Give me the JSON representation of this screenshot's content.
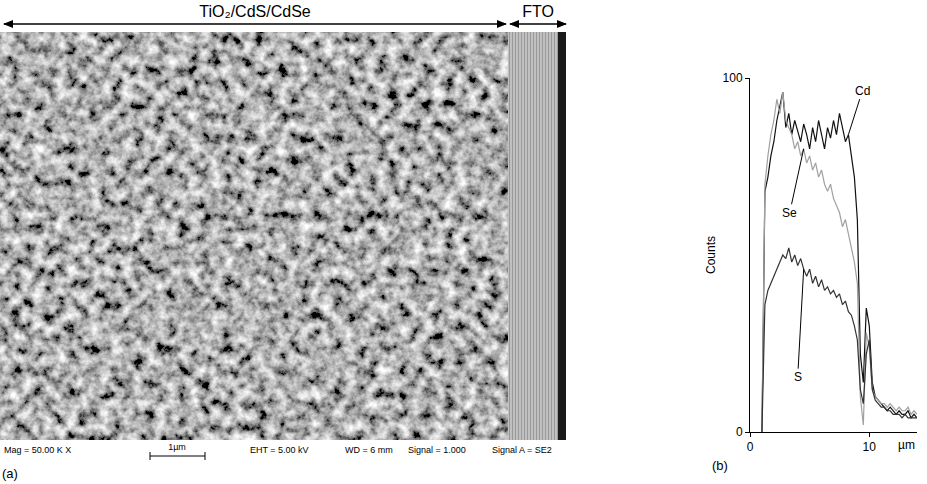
{
  "image_panel": {
    "panel_label": "(a)",
    "regions": [
      {
        "label": "TiO₂/CdS/CdSe"
      },
      {
        "label": "FTO"
      }
    ],
    "info_bar": {
      "magnification": "Mag = 50.00 K X",
      "scale_bar": "1µm",
      "eht": "EHT = 5.00 kV",
      "wd": "WD = 6 mm",
      "signal": "Signal = 1.000",
      "signal_a": "Signal A = SE2"
    }
  },
  "chart_data": {
    "type": "line",
    "panel_label": "(b)",
    "x_label": "µm",
    "y_label": "Counts",
    "x": [
      1,
      1.25,
      1.5,
      1.75,
      2,
      2.25,
      2.5,
      2.75,
      3,
      3.25,
      3.5,
      3.75,
      4,
      4.25,
      4.5,
      4.75,
      5,
      5.25,
      5.5,
      5.75,
      6,
      6.25,
      6.5,
      6.75,
      7,
      7.25,
      7.5,
      7.75,
      8,
      8.25,
      8.5,
      8.75,
      9,
      9.25,
      9.5,
      9.75,
      10,
      10.25,
      10.5,
      10.75,
      11,
      11.25,
      11.5,
      11.75,
      12,
      12.25,
      12.5,
      12.75,
      13,
      13.25,
      13.5,
      13.75,
      14
    ],
    "series": [
      {
        "name": "Cd",
        "color": "#111111",
        "values": [
          0,
          68,
          72,
          78,
          82,
          88,
          92,
          96,
          86,
          90,
          84,
          88,
          85,
          82,
          87,
          84,
          80,
          86,
          82,
          88,
          84,
          80,
          86,
          83,
          88,
          84,
          90,
          86,
          82,
          84,
          78,
          72,
          60,
          22,
          14,
          35,
          30,
          14,
          10,
          9,
          8,
          7,
          6,
          7,
          6,
          5,
          6,
          5,
          5,
          6,
          4,
          5,
          4
        ]
      },
      {
        "name": "Se",
        "color": "#a0a0a0",
        "values": [
          0,
          70,
          78,
          84,
          88,
          94,
          90,
          96,
          88,
          86,
          84,
          80,
          82,
          78,
          80,
          76,
          78,
          74,
          76,
          72,
          74,
          70,
          68,
          70,
          66,
          64,
          62,
          58,
          60,
          56,
          52,
          48,
          42,
          10,
          2,
          28,
          24,
          12,
          10,
          9,
          8,
          8,
          7,
          8,
          7,
          6,
          7,
          6,
          6,
          7,
          5,
          6,
          5
        ]
      },
      {
        "name": "S",
        "color": "#333333",
        "values": [
          0,
          36,
          40,
          42,
          44,
          46,
          48,
          50,
          49,
          52,
          48,
          50,
          47,
          49,
          46,
          44,
          46,
          42,
          44,
          41,
          43,
          40,
          41,
          39,
          40,
          38,
          39,
          36,
          37,
          34,
          33,
          30,
          26,
          12,
          8,
          22,
          26,
          12,
          9,
          8,
          7,
          7,
          6,
          6,
          5,
          5,
          5,
          4,
          5,
          4,
          4,
          4,
          4
        ]
      }
    ],
    "xlim": [
      0,
      14
    ],
    "xticks": [
      0,
      10
    ],
    "ylim": [
      0,
      100
    ],
    "yticks": [
      0,
      100
    ],
    "grid": false
  }
}
